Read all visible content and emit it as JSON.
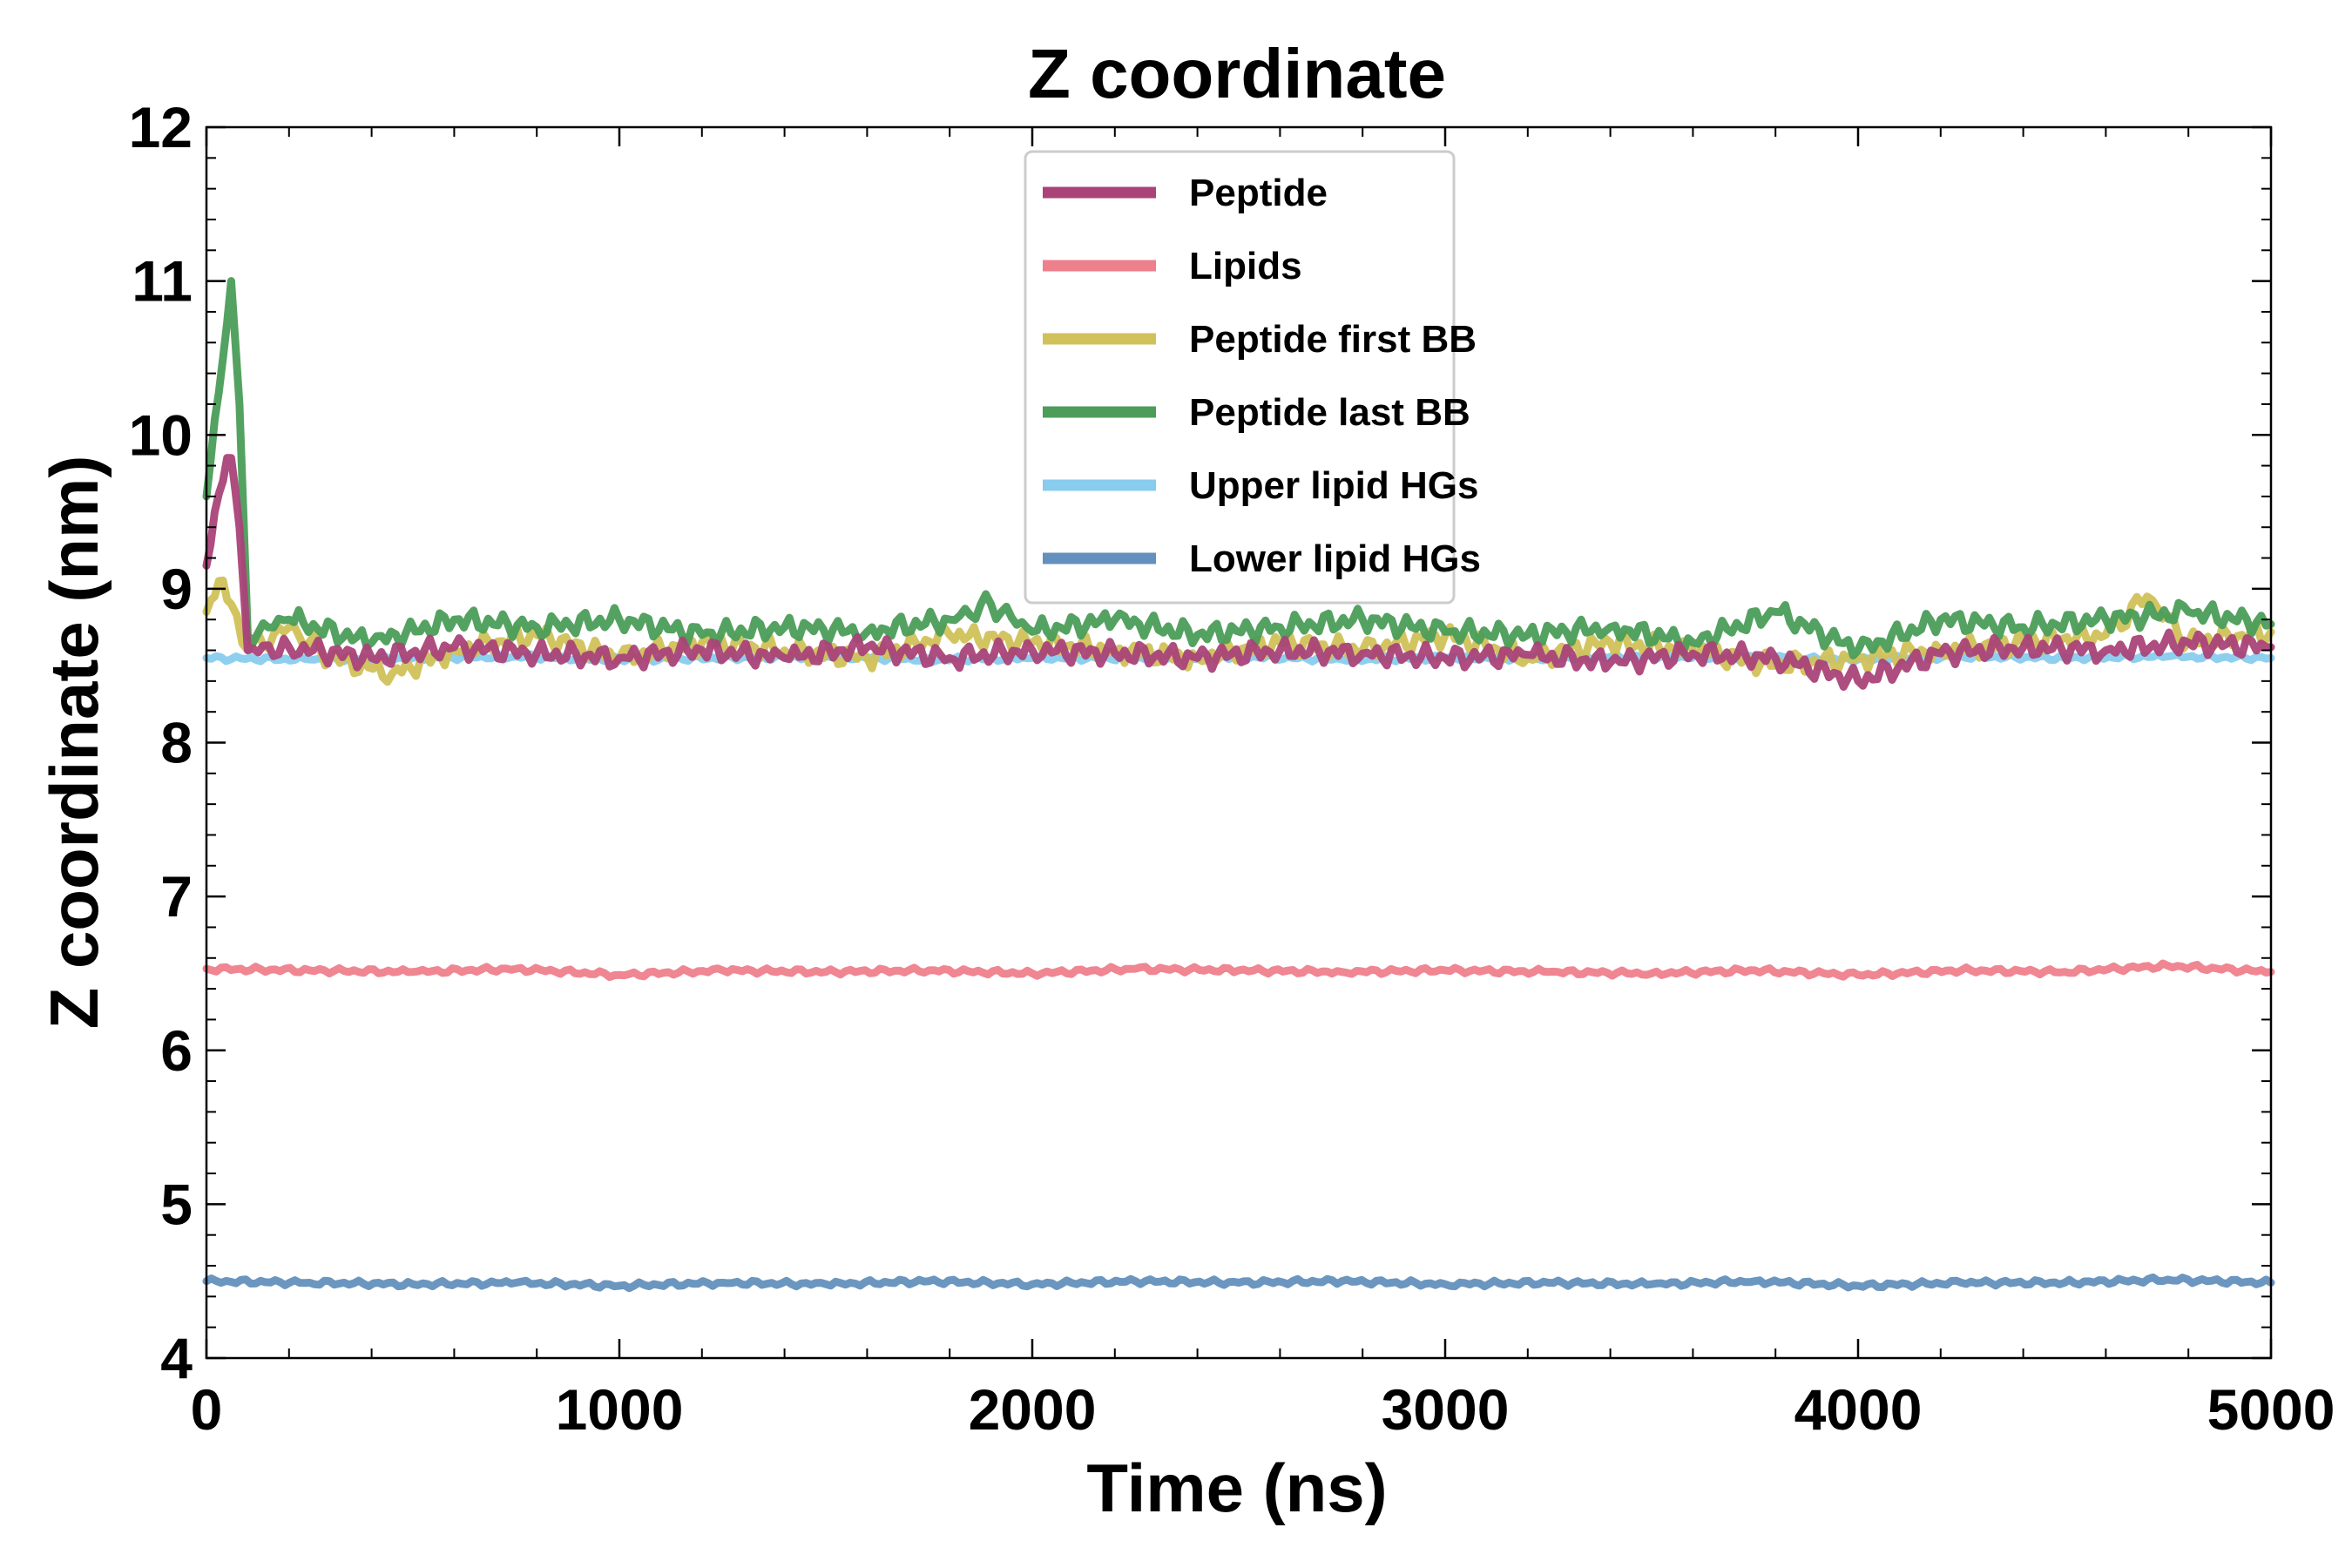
{
  "chart_data": {
    "type": "line",
    "title": "Z coordinate",
    "xlabel": "Time (ns)",
    "ylabel": "Z coordinate (nm)",
    "xlim": [
      0,
      5000
    ],
    "ylim": [
      4,
      12
    ],
    "xticks": [
      0,
      1000,
      2000,
      3000,
      4000,
      5000
    ],
    "xtick_labels": [
      "0",
      "1000",
      "2000",
      "3000",
      "4000",
      "5000"
    ],
    "yticks": [
      4,
      5,
      6,
      7,
      8,
      9,
      10,
      11,
      12
    ],
    "ytick_labels": [
      "4",
      "5",
      "6",
      "7",
      "8",
      "9",
      "10",
      "11",
      "12"
    ],
    "grid": false,
    "legend_position": "top-center",
    "series": [
      {
        "name": "Upper lipid HGs",
        "color": "#88CCEE",
        "x": [
          0,
          250,
          500,
          750,
          1000,
          1250,
          1500,
          1750,
          2000,
          2250,
          2500,
          2750,
          3000,
          3250,
          3500,
          3750,
          4000,
          4250,
          4500,
          4750,
          5000
        ],
        "values": [
          8.55,
          8.54,
          8.55,
          8.56,
          8.54,
          8.55,
          8.56,
          8.54,
          8.55,
          8.55,
          8.56,
          8.54,
          8.55,
          8.55,
          8.56,
          8.55,
          8.54,
          8.56,
          8.55,
          8.56,
          8.55
        ]
      },
      {
        "name": "Lipids",
        "color": "#EE7F8C",
        "x": [
          0,
          250,
          500,
          750,
          1000,
          1250,
          1500,
          1750,
          2000,
          2250,
          2500,
          2750,
          3000,
          3250,
          3500,
          3750,
          4000,
          4250,
          4500,
          4750,
          5000
        ],
        "values": [
          6.53,
          6.52,
          6.51,
          6.53,
          6.49,
          6.52,
          6.51,
          6.52,
          6.5,
          6.53,
          6.52,
          6.51,
          6.52,
          6.51,
          6.5,
          6.52,
          6.49,
          6.52,
          6.51,
          6.55,
          6.51
        ]
      },
      {
        "name": "Lower lipid HGs",
        "color": "#6390BC",
        "x": [
          0,
          250,
          500,
          750,
          1000,
          1250,
          1500,
          1750,
          2000,
          2250,
          2500,
          2750,
          3000,
          3250,
          3500,
          3750,
          4000,
          4250,
          4500,
          4750,
          5000
        ],
        "values": [
          4.5,
          4.49,
          4.48,
          4.49,
          4.47,
          4.49,
          4.48,
          4.5,
          4.48,
          4.5,
          4.49,
          4.5,
          4.48,
          4.49,
          4.48,
          4.5,
          4.47,
          4.49,
          4.49,
          4.51,
          4.49
        ]
      },
      {
        "name": "Peptide first BB",
        "color": "#D1C15A",
        "x": [
          0,
          30,
          60,
          100,
          200,
          300,
          450,
          600,
          800,
          1000,
          1200,
          1400,
          1600,
          1800,
          2000,
          2200,
          2400,
          2600,
          2800,
          3000,
          3200,
          3400,
          3600,
          3800,
          4000,
          4200,
          4400,
          4600,
          4700,
          4800,
          5000
        ],
        "values": [
          8.85,
          9.05,
          8.9,
          8.6,
          8.75,
          8.55,
          8.45,
          8.6,
          8.7,
          8.55,
          8.65,
          8.6,
          8.55,
          8.7,
          8.65,
          8.6,
          8.55,
          8.65,
          8.6,
          8.7,
          8.55,
          8.65,
          8.6,
          8.5,
          8.55,
          8.6,
          8.65,
          8.7,
          8.95,
          8.65,
          8.72
        ]
      },
      {
        "name": "Peptide last BB",
        "color": "#4B9D59",
        "x": [
          0,
          20,
          40,
          60,
          80,
          100,
          200,
          400,
          600,
          800,
          1000,
          1200,
          1400,
          1600,
          1800,
          1900,
          2000,
          2200,
          2400,
          2600,
          2800,
          3000,
          3200,
          3400,
          3600,
          3800,
          4000,
          4200,
          4400,
          4600,
          4800,
          5000
        ],
        "values": [
          9.6,
          10.1,
          10.5,
          11.0,
          10.2,
          8.7,
          8.8,
          8.65,
          8.8,
          8.75,
          8.8,
          8.7,
          8.75,
          8.72,
          8.8,
          8.9,
          8.72,
          8.8,
          8.7,
          8.75,
          8.8,
          8.72,
          8.7,
          8.75,
          8.65,
          8.85,
          8.6,
          8.8,
          8.75,
          8.8,
          8.85,
          8.77
        ]
      },
      {
        "name": "Peptide",
        "color": "#AA4378",
        "x": [
          0,
          20,
          40,
          60,
          80,
          100,
          200,
          400,
          600,
          800,
          1000,
          1200,
          1400,
          1600,
          1800,
          2000,
          2200,
          2400,
          2600,
          2800,
          3000,
          3200,
          3400,
          3600,
          3800,
          4000,
          4200,
          4400,
          4600,
          4800,
          5000
        ],
        "values": [
          9.15,
          9.5,
          9.7,
          9.85,
          9.4,
          8.6,
          8.62,
          8.55,
          8.62,
          8.58,
          8.55,
          8.6,
          8.55,
          8.62,
          8.55,
          8.6,
          8.58,
          8.55,
          8.6,
          8.58,
          8.55,
          8.57,
          8.52,
          8.58,
          8.55,
          8.4,
          8.58,
          8.62,
          8.6,
          8.65,
          8.62
        ]
      }
    ]
  },
  "legend_order": [
    "Peptide",
    "Lipids",
    "Peptide first BB",
    "Peptide last BB",
    "Upper lipid HGs",
    "Lower lipid HGs"
  ]
}
